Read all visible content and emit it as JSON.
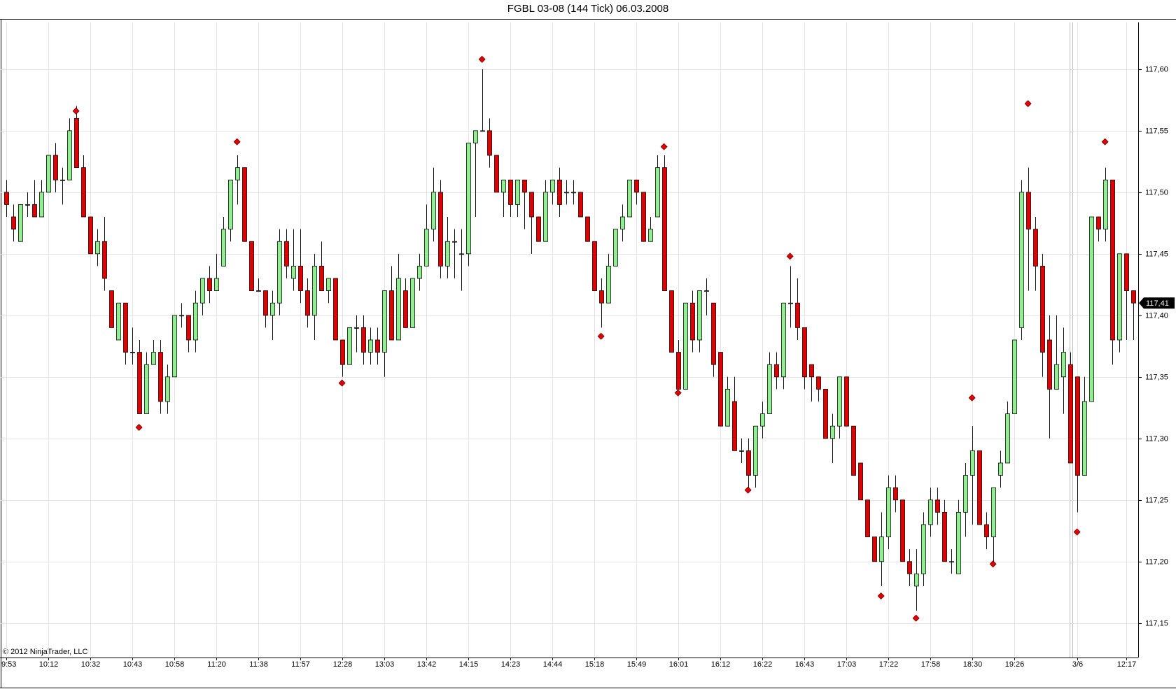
{
  "chart_data": {
    "type": "candlestick",
    "title": "FGBL 03-08 (144 Tick)  06.03.2008",
    "copyright": "© 2012 NinjaTrader, LLC",
    "up_color": "#90ee90",
    "down_color": "#e00000",
    "marker_color": "#e00000",
    "grid": true,
    "ylim": [
      117.122,
      117.638
    ],
    "yticks": [
      {
        "value": 117.15,
        "label": "117,15"
      },
      {
        "value": 117.2,
        "label": "117,20"
      },
      {
        "value": 117.25,
        "label": "117,25"
      },
      {
        "value": 117.3,
        "label": "117,30"
      },
      {
        "value": 117.35,
        "label": "117,35"
      },
      {
        "value": 117.4,
        "label": "117,40"
      },
      {
        "value": 117.45,
        "label": "117,45"
      },
      {
        "value": 117.5,
        "label": "117,50"
      },
      {
        "value": 117.55,
        "label": "117,55"
      },
      {
        "value": 117.6,
        "label": "117,60"
      }
    ],
    "last_price": {
      "value": 117.41,
      "label": "117,41"
    },
    "categories": [
      "9:53",
      null,
      null,
      null,
      null,
      null,
      "10:12",
      null,
      null,
      null,
      null,
      null,
      "10:32",
      null,
      null,
      null,
      null,
      null,
      "10:43",
      null,
      null,
      null,
      null,
      null,
      "10:58",
      null,
      null,
      null,
      null,
      null,
      "11:20",
      null,
      null,
      null,
      null,
      null,
      "11:38",
      null,
      null,
      null,
      null,
      null,
      "11:57",
      null,
      null,
      null,
      null,
      null,
      "12:28",
      null,
      null,
      null,
      null,
      null,
      "13:03",
      null,
      null,
      null,
      null,
      null,
      "13:42",
      null,
      null,
      null,
      null,
      null,
      "14:15",
      null,
      null,
      null,
      null,
      null,
      "14:23",
      null,
      null,
      null,
      null,
      null,
      "14:44",
      null,
      null,
      null,
      null,
      null,
      "15:18",
      null,
      null,
      null,
      null,
      null,
      "15:49",
      null,
      null,
      null,
      null,
      null,
      "16:01",
      null,
      null,
      null,
      null,
      null,
      "16:12",
      null,
      null,
      null,
      null,
      null,
      "16:22",
      null,
      null,
      null,
      null,
      null,
      "16:43",
      null,
      null,
      null,
      null,
      null,
      "17:03",
      null,
      null,
      null,
      null,
      null,
      "17:22",
      null,
      null,
      null,
      null,
      null,
      "17:58",
      null,
      null,
      null,
      null,
      null,
      "18:30",
      null,
      null,
      null,
      null,
      null,
      "19:26",
      null,
      null,
      null,
      null,
      null,
      null,
      null,
      null,
      "3/6",
      null,
      null,
      null,
      null,
      null,
      null,
      "12:17",
      null
    ],
    "open": [
      117.5,
      117.48,
      117.46,
      117.49,
      117.49,
      117.48,
      117.5,
      117.53,
      117.51,
      117.51,
      117.56,
      117.52,
      117.48,
      117.45,
      117.46,
      117.42,
      117.38,
      117.41,
      117.37,
      117.37,
      117.32,
      117.36,
      117.37,
      117.33,
      117.35,
      117.4,
      117.4,
      117.38,
      117.41,
      117.43,
      117.42,
      117.44,
      117.47,
      117.51,
      117.52,
      117.46,
      117.42,
      117.42,
      117.4,
      117.41,
      117.46,
      117.43,
      117.44,
      117.42,
      117.4,
      117.44,
      117.42,
      117.43,
      117.38,
      117.36,
      117.39,
      117.39,
      117.37,
      117.38,
      117.37,
      117.42,
      117.38,
      117.42,
      117.39,
      117.43,
      117.44,
      117.47,
      117.5,
      117.44,
      117.46,
      117.45,
      117.45,
      117.54,
      117.55,
      117.55,
      117.53,
      117.5,
      117.51,
      117.49,
      117.51,
      117.5,
      117.48,
      117.46,
      117.5,
      117.51,
      117.5,
      117.5,
      117.5,
      117.48,
      117.46,
      117.42,
      117.41,
      117.44,
      117.47,
      117.48,
      117.51,
      117.5,
      117.46,
      117.48,
      117.52,
      117.42,
      117.37,
      117.34,
      117.41,
      117.38,
      117.42,
      117.41,
      117.37,
      117.31,
      117.33,
      117.29,
      117.29,
      117.27,
      117.31,
      117.32,
      117.36,
      117.35,
      117.41,
      117.41,
      117.39,
      117.36,
      117.35,
      117.34,
      117.3,
      117.31,
      117.35,
      117.31,
      117.28,
      117.25,
      117.22,
      117.2,
      117.22,
      117.26,
      117.25,
      117.2,
      117.18,
      117.19,
      117.23,
      117.25,
      117.24,
      117.2,
      117.19,
      117.24,
      117.27,
      117.29,
      117.23,
      117.22,
      117.27,
      117.28,
      117.32,
      117.39,
      117.5,
      117.47,
      117.44,
      117.38,
      117.34,
      117.35,
      117.36,
      117.35,
      117.27,
      117.33,
      117.48,
      117.47,
      117.51,
      117.38,
      117.45,
      117.42
    ],
    "high": [
      117.51,
      117.49,
      117.49,
      117.5,
      117.51,
      117.51,
      117.53,
      117.54,
      117.52,
      117.56,
      117.57,
      117.53,
      117.48,
      117.47,
      117.48,
      117.42,
      117.41,
      117.41,
      117.39,
      117.38,
      117.37,
      117.38,
      117.38,
      117.36,
      117.4,
      117.41,
      117.4,
      117.42,
      117.43,
      117.44,
      117.45,
      117.48,
      117.51,
      117.53,
      117.52,
      117.46,
      117.43,
      117.42,
      117.42,
      117.47,
      117.47,
      117.47,
      117.47,
      117.43,
      117.45,
      117.46,
      117.43,
      117.43,
      117.38,
      117.39,
      117.4,
      117.4,
      117.39,
      117.39,
      117.42,
      117.44,
      117.45,
      117.43,
      117.43,
      117.45,
      117.49,
      117.52,
      117.51,
      117.48,
      117.47,
      117.47,
      117.54,
      117.55,
      117.6,
      117.56,
      117.53,
      117.51,
      117.51,
      117.51,
      117.51,
      117.5,
      117.48,
      117.51,
      117.51,
      117.52,
      117.51,
      117.51,
      117.5,
      117.48,
      117.46,
      117.43,
      117.45,
      117.47,
      117.49,
      117.51,
      117.51,
      117.5,
      117.48,
      117.53,
      117.53,
      117.42,
      117.38,
      117.41,
      117.42,
      117.42,
      117.43,
      117.41,
      117.37,
      117.35,
      117.35,
      117.3,
      117.3,
      117.31,
      117.33,
      117.37,
      117.37,
      117.41,
      117.44,
      117.43,
      117.39,
      117.36,
      117.35,
      117.34,
      117.32,
      117.35,
      117.35,
      117.31,
      117.28,
      117.25,
      117.22,
      117.24,
      117.27,
      117.27,
      117.25,
      117.21,
      117.21,
      117.24,
      117.26,
      117.26,
      117.25,
      117.21,
      117.25,
      117.28,
      117.31,
      117.29,
      117.24,
      117.26,
      117.29,
      117.33,
      117.38,
      117.51,
      117.52,
      117.48,
      117.45,
      117.4,
      117.4,
      117.39,
      117.37,
      117.35,
      117.35,
      117.48,
      117.48,
      117.52,
      117.51,
      117.45,
      117.45,
      117.42
    ],
    "low": [
      117.48,
      117.46,
      117.46,
      117.48,
      117.48,
      117.48,
      117.5,
      117.5,
      117.49,
      117.51,
      117.52,
      117.48,
      117.45,
      117.44,
      117.42,
      117.39,
      117.38,
      117.36,
      117.36,
      117.32,
      117.32,
      117.36,
      117.32,
      117.32,
      117.35,
      117.39,
      117.37,
      117.37,
      117.4,
      117.41,
      117.42,
      117.44,
      117.46,
      117.49,
      117.46,
      117.42,
      117.42,
      117.39,
      117.38,
      117.4,
      117.43,
      117.42,
      117.41,
      117.39,
      117.38,
      117.42,
      117.41,
      117.38,
      117.35,
      117.36,
      117.37,
      117.36,
      117.36,
      117.36,
      117.35,
      117.38,
      117.38,
      117.39,
      117.39,
      117.42,
      117.44,
      117.46,
      117.43,
      117.43,
      117.43,
      117.42,
      117.44,
      117.48,
      117.55,
      117.52,
      117.5,
      117.48,
      117.48,
      117.48,
      117.47,
      117.45,
      117.46,
      117.46,
      117.49,
      117.48,
      117.49,
      117.49,
      117.48,
      117.46,
      117.42,
      117.39,
      117.41,
      117.44,
      117.46,
      117.48,
      117.49,
      117.46,
      117.46,
      117.48,
      117.42,
      117.37,
      117.34,
      117.34,
      117.37,
      117.37,
      117.4,
      117.35,
      117.31,
      117.31,
      117.29,
      117.28,
      117.26,
      117.26,
      117.3,
      117.32,
      117.34,
      117.34,
      117.39,
      117.38,
      117.34,
      117.33,
      117.33,
      117.3,
      117.28,
      117.3,
      117.31,
      117.27,
      117.25,
      117.22,
      117.2,
      117.18,
      117.21,
      117.24,
      117.2,
      117.18,
      117.16,
      117.18,
      117.22,
      117.23,
      117.2,
      117.19,
      117.19,
      117.22,
      117.23,
      117.23,
      117.21,
      117.2,
      117.26,
      117.28,
      117.32,
      117.38,
      117.42,
      117.42,
      117.35,
      117.3,
      117.34,
      117.32,
      117.28,
      117.24,
      117.27,
      117.33,
      117.46,
      117.46,
      117.36,
      117.37,
      117.38,
      117.38
    ],
    "close": [
      117.49,
      117.47,
      117.49,
      117.49,
      117.48,
      117.5,
      117.53,
      117.51,
      117.51,
      117.55,
      117.52,
      117.48,
      117.45,
      117.46,
      117.43,
      117.39,
      117.41,
      117.37,
      117.37,
      117.32,
      117.36,
      117.37,
      117.33,
      117.35,
      117.4,
      117.4,
      117.38,
      117.41,
      117.43,
      117.42,
      117.43,
      117.47,
      117.51,
      117.52,
      117.46,
      117.42,
      117.42,
      117.4,
      117.41,
      117.46,
      117.44,
      117.44,
      117.42,
      117.4,
      117.44,
      117.42,
      117.43,
      117.38,
      117.36,
      117.39,
      117.39,
      117.37,
      117.38,
      117.37,
      117.42,
      117.38,
      117.43,
      117.39,
      117.43,
      117.44,
      117.47,
      117.5,
      117.44,
      117.46,
      117.46,
      117.45,
      117.54,
      117.55,
      117.55,
      117.53,
      117.5,
      117.51,
      117.49,
      117.51,
      117.5,
      117.48,
      117.46,
      117.5,
      117.51,
      117.49,
      117.5,
      117.5,
      117.48,
      117.46,
      117.42,
      117.41,
      117.44,
      117.47,
      117.48,
      117.51,
      117.5,
      117.46,
      117.47,
      117.52,
      117.42,
      117.37,
      117.34,
      117.41,
      117.38,
      117.42,
      117.42,
      117.36,
      117.31,
      117.34,
      117.29,
      117.29,
      117.27,
      117.31,
      117.32,
      117.36,
      117.35,
      117.41,
      117.41,
      117.39,
      117.35,
      117.35,
      117.34,
      117.3,
      117.31,
      117.35,
      117.31,
      117.27,
      117.25,
      117.22,
      117.2,
      117.22,
      117.26,
      117.25,
      117.2,
      117.19,
      117.19,
      117.23,
      117.25,
      117.24,
      117.2,
      117.2,
      117.24,
      117.27,
      117.29,
      117.23,
      117.22,
      117.26,
      117.28,
      117.32,
      117.38,
      117.5,
      117.47,
      117.44,
      117.37,
      117.34,
      117.36,
      117.37,
      117.28,
      117.27,
      117.33,
      117.48,
      117.47,
      117.51,
      117.38,
      117.45,
      117.42,
      117.41
    ],
    "markers": [
      null,
      null,
      null,
      null,
      null,
      null,
      null,
      null,
      null,
      null,
      117.566,
      null,
      null,
      null,
      null,
      null,
      null,
      null,
      null,
      117.309,
      null,
      null,
      null,
      null,
      null,
      null,
      null,
      null,
      null,
      null,
      null,
      null,
      null,
      117.541,
      null,
      null,
      null,
      null,
      null,
      null,
      null,
      null,
      null,
      null,
      null,
      null,
      null,
      null,
      117.345,
      null,
      null,
      null,
      null,
      null,
      null,
      null,
      null,
      null,
      null,
      null,
      null,
      null,
      null,
      null,
      null,
      null,
      null,
      null,
      117.608,
      null,
      null,
      null,
      null,
      null,
      null,
      null,
      null,
      null,
      null,
      null,
      null,
      null,
      null,
      null,
      null,
      117.383,
      null,
      null,
      null,
      null,
      null,
      null,
      null,
      null,
      117.537,
      null,
      117.337,
      null,
      null,
      null,
      null,
      null,
      null,
      null,
      null,
      null,
      117.258,
      null,
      null,
      null,
      null,
      null,
      117.448,
      null,
      null,
      null,
      null,
      null,
      null,
      null,
      null,
      null,
      null,
      null,
      null,
      117.172,
      null,
      null,
      null,
      null,
      117.154,
      null,
      null,
      null,
      null,
      null,
      null,
      null,
      117.333,
      null,
      null,
      117.198,
      null,
      null,
      null,
      null,
      117.572,
      null,
      null,
      null,
      null,
      null,
      null,
      117.224,
      null,
      null,
      null,
      117.541,
      null,
      null,
      null,
      null
    ]
  }
}
